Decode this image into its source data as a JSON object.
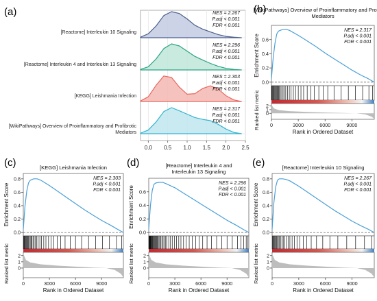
{
  "colors": {
    "curve": "#4a9fd8",
    "dashed": "#666666",
    "ridge_fills": [
      "#c3cbe2",
      "#bfe6d8",
      "#f3b7b3",
      "#bfe6ef"
    ],
    "ridge_lines": [
      "#4a5f8c",
      "#2aa383",
      "#e8675e",
      "#34b4cf"
    ],
    "bar_red": "#c8262e",
    "bar_blue": "#3f7fc3",
    "metric_fill": "#bdbdbd"
  },
  "chart_data": [
    {
      "panel_label": "(a)",
      "type": "ridgeline",
      "xticks": [
        "0.0",
        "0.5",
        "1.0",
        "1.5",
        "2.0",
        "2.5"
      ],
      "xlim": [
        -0.2,
        2.5
      ],
      "pathways": [
        {
          "name": "[Reactome] Interleukin 10 Signaling",
          "nes": "NES = 2.267",
          "padj": "P.adj < 0.001",
          "fdr": "FDR < 0.001",
          "x": [
            -0.2,
            0.0,
            0.2,
            0.4,
            0.6,
            0.8,
            1.0,
            1.2,
            1.4,
            1.6,
            1.8,
            2.0,
            2.2,
            2.4
          ],
          "density": [
            0.02,
            0.15,
            0.45,
            0.85,
            1.0,
            0.93,
            0.72,
            0.48,
            0.33,
            0.22,
            0.12,
            0.05,
            0.02,
            0.0
          ]
        },
        {
          "name": "[Reactome] Interleukin 4 and Interleukin 13 Signaling",
          "nes": "NES = 2.296",
          "padj": "P.adj < 0.001",
          "fdr": "FDR < 0.001",
          "x": [
            -0.2,
            0.0,
            0.2,
            0.4,
            0.6,
            0.8,
            1.0,
            1.2,
            1.4,
            1.6,
            1.8,
            2.0,
            2.2,
            2.4
          ],
          "density": [
            0.02,
            0.12,
            0.42,
            0.82,
            1.0,
            0.92,
            0.72,
            0.52,
            0.38,
            0.25,
            0.14,
            0.06,
            0.02,
            0.0
          ]
        },
        {
          "name": "[KEGG] Leishmania Infection",
          "nes": "NES = 2.303",
          "padj": "P.adj < 0.001",
          "fdr": "FDR < 0.001",
          "x": [
            -0.2,
            0.0,
            0.2,
            0.4,
            0.6,
            0.8,
            1.0,
            1.2,
            1.4,
            1.6,
            1.8,
            2.0,
            2.2,
            2.4
          ],
          "density": [
            0.02,
            0.18,
            0.62,
            0.98,
            0.92,
            0.55,
            0.28,
            0.3,
            0.5,
            0.6,
            0.48,
            0.22,
            0.06,
            0.0
          ]
        },
        {
          "name": "[WikiPathways] Overview of Proinflammatory and Profibrotic Mediators",
          "nes": "NES = 2.317",
          "padj": "P.adj < 0.001",
          "fdr": "FDR < 0.001",
          "x": [
            -0.2,
            0.0,
            0.2,
            0.4,
            0.6,
            0.8,
            1.0,
            1.2,
            1.4,
            1.6,
            1.8,
            2.0,
            2.2,
            2.4
          ],
          "density": [
            0.02,
            0.14,
            0.45,
            0.85,
            1.0,
            0.88,
            0.75,
            0.62,
            0.55,
            0.5,
            0.36,
            0.18,
            0.05,
            0.0
          ]
        }
      ]
    },
    {
      "panel_label": "(b)",
      "type": "line",
      "title_lines": [
        "[WikiPathways] Overview of Proinflammatory and Profibrotic",
        "Mediators"
      ],
      "ylabel": "Enrichment Score",
      "ylabel2": "Ranked list metric",
      "xlabel": "Rank in Ordered Dataset",
      "yticks": [
        "0.0",
        "0.2",
        "0.4",
        "0.6"
      ],
      "ylim": [
        -0.05,
        0.8
      ],
      "metric_ticks": [
        "2",
        "1",
        "0"
      ],
      "xticks": [
        "0",
        "3000",
        "6000",
        "9000"
      ],
      "xlim": [
        0,
        11500
      ],
      "stats": [
        "NES = 2.317",
        "P.adj < 0.001",
        "FDR < 0.001"
      ],
      "es_curve": {
        "x": [
          0,
          200,
          400,
          600,
          800,
          1200,
          1600,
          2000,
          3000,
          4000,
          5000,
          6000,
          7000,
          8000,
          9000,
          10000,
          10800,
          11500
        ],
        "y": [
          0.05,
          0.35,
          0.55,
          0.68,
          0.72,
          0.74,
          0.745,
          0.73,
          0.66,
          0.58,
          0.5,
          0.41,
          0.33,
          0.25,
          0.17,
          0.1,
          0.05,
          0.0
        ]
      },
      "hits": [
        20,
        60,
        120,
        180,
        250,
        320,
        400,
        480,
        560,
        640,
        720,
        800,
        900,
        1000,
        1150,
        1300,
        1450,
        1600,
        1800,
        2000,
        2200,
        2450,
        2700,
        3000,
        3300,
        3600,
        4000,
        4400,
        4800,
        5300,
        5800,
        6300,
        7000,
        7800,
        8600,
        9400,
        10200,
        10900,
        11300
      ]
    },
    {
      "panel_label": "(c)",
      "type": "line",
      "title_lines": [
        "[KEGG] Leishmania Infection"
      ],
      "ylabel": "Enrichment Score",
      "ylabel2": "Ranked list metric",
      "xlabel": "Rank in Ordered Dataset",
      "yticks": [
        "0.0",
        "0.2",
        "0.4",
        "0.6",
        "0.8"
      ],
      "ylim": [
        -0.05,
        0.88
      ],
      "metric_ticks": [
        "2",
        "1",
        "0"
      ],
      "xticks": [
        "0",
        "3000",
        "6000",
        "9000"
      ],
      "xlim": [
        0,
        11500
      ],
      "stats": [
        "NES = 2.303",
        "P.adj < 0.001",
        "FDR < 0.001"
      ],
      "es_curve": {
        "x": [
          0,
          200,
          400,
          600,
          800,
          1200,
          1600,
          2000,
          3000,
          4000,
          5000,
          6000,
          7000,
          8000,
          9000,
          10000,
          10800,
          11500
        ],
        "y": [
          0.05,
          0.4,
          0.62,
          0.74,
          0.78,
          0.8,
          0.8,
          0.78,
          0.7,
          0.61,
          0.52,
          0.43,
          0.34,
          0.26,
          0.18,
          0.11,
          0.05,
          0.0
        ]
      },
      "hits": [
        30,
        80,
        140,
        200,
        270,
        350,
        430,
        520,
        600,
        700,
        800,
        900,
        1000,
        1120,
        1250,
        1400,
        1550,
        1700,
        1900,
        2100,
        2350,
        2600,
        2900,
        3200,
        3500,
        3900,
        4300,
        4800,
        5400,
        6000,
        6700,
        7500,
        8300,
        9100,
        9900,
        10700,
        11300
      ]
    },
    {
      "panel_label": "(d)",
      "type": "line",
      "title_lines": [
        "[Reactome] Interleukin 4 and",
        "Interleukin 13 Signaling"
      ],
      "ylabel": "Enrichment Score",
      "ylabel2": "Ranked list metric",
      "xlabel": "Rank in Ordered Dataset",
      "yticks": [
        "0.0",
        "0.2",
        "0.4",
        "0.6"
      ],
      "ylim": [
        -0.05,
        0.8
      ],
      "metric_ticks": [
        "2",
        "1",
        "0"
      ],
      "xticks": [
        "0",
        "3000",
        "6000",
        "9000"
      ],
      "xlim": [
        0,
        11500
      ],
      "stats": [
        "NES = 2.296",
        "P.adj < 0.001",
        "FDR < 0.001"
      ],
      "es_curve": {
        "x": [
          0,
          200,
          400,
          600,
          800,
          1200,
          1600,
          2000,
          3000,
          4000,
          5000,
          6000,
          7000,
          8000,
          9000,
          10000,
          10800,
          11500
        ],
        "y": [
          0.05,
          0.4,
          0.62,
          0.71,
          0.73,
          0.74,
          0.74,
          0.72,
          0.66,
          0.58,
          0.5,
          0.42,
          0.34,
          0.26,
          0.18,
          0.11,
          0.05,
          0.0
        ]
      },
      "hits": [
        20,
        50,
        90,
        130,
        170,
        220,
        270,
        330,
        390,
        450,
        520,
        590,
        660,
        740,
        820,
        900,
        990,
        1080,
        1180,
        1280,
        1400,
        1520,
        1650,
        1800,
        1950,
        2100,
        2300,
        2500,
        2700,
        2950,
        3200,
        3450,
        3700,
        4000,
        4300,
        4650,
        5000,
        5400,
        5800,
        6200,
        6700,
        7200,
        7800,
        8400,
        9000,
        9600,
        10200,
        10600,
        10900,
        11200,
        11400
      ]
    },
    {
      "panel_label": "(e)",
      "type": "line",
      "title_lines": [
        "[Reactome] Interleukin 10 Signaling"
      ],
      "ylabel": "Enrichment Score",
      "ylabel2": "Ranked list metric",
      "xlabel": "Rank in Ordered Dataset",
      "yticks": [
        "0.0",
        "0.2",
        "0.4",
        "0.6",
        "0.8"
      ],
      "ylim": [
        -0.05,
        0.88
      ],
      "metric_ticks": [
        "2",
        "1",
        "0"
      ],
      "xticks": [
        "0",
        "3000",
        "6000",
        "9000"
      ],
      "xlim": [
        0,
        11500
      ],
      "stats": [
        "NES = 2.267",
        "P.adj < 0.001",
        "FDR < 0.001"
      ],
      "es_curve": {
        "x": [
          0,
          200,
          400,
          600,
          800,
          1200,
          1600,
          2000,
          3000,
          4000,
          5000,
          6000,
          7000,
          8000,
          9000,
          10000,
          10800,
          11500
        ],
        "y": [
          0.05,
          0.45,
          0.68,
          0.78,
          0.8,
          0.8,
          0.79,
          0.77,
          0.69,
          0.6,
          0.51,
          0.42,
          0.33,
          0.25,
          0.17,
          0.1,
          0.05,
          0.0
        ]
      },
      "hits": [
        30,
        90,
        160,
        240,
        320,
        400,
        500,
        600,
        700,
        820,
        950,
        1100,
        1250,
        1400,
        1600,
        1800,
        2000,
        2250,
        2500,
        2800,
        3100,
        3500,
        3900,
        4400,
        5000,
        5700,
        6500,
        7400,
        8400,
        9400,
        10400,
        11200
      ]
    }
  ]
}
